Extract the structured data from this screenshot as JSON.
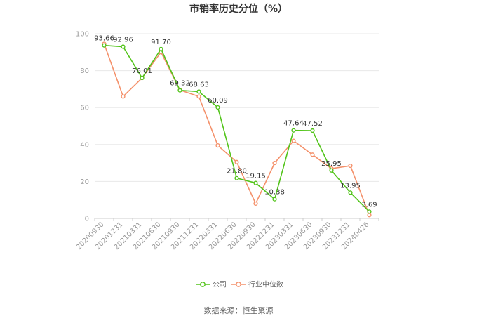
{
  "chart_data": {
    "type": "line",
    "title": "市销率历史分位（%）",
    "categories": [
      "20200930",
      "20201231",
      "20210331",
      "20210630",
      "20210930",
      "20211231",
      "20220331",
      "20220630",
      "20220930",
      "20221231",
      "20230331",
      "20230630",
      "20230930",
      "20231231",
      "20240426"
    ],
    "ylim": [
      0,
      100
    ],
    "yticks": [
      0,
      20,
      40,
      60,
      80,
      100
    ],
    "grid": true,
    "legend_position": "bottom",
    "series": [
      {
        "name": "公司",
        "color": "#52c41a",
        "values": [
          93.66,
          92.96,
          76.01,
          91.7,
          69.32,
          68.63,
          60.09,
          21.8,
          19.15,
          10.38,
          47.64,
          47.52,
          25.95,
          13.95,
          3.69
        ],
        "labels": [
          "93.66",
          "92.96",
          "76.01",
          "91.70",
          "69.32",
          "68.63",
          "60.09",
          "21.80",
          "19.15",
          "10.38",
          "47.64",
          "47.52",
          "25.95",
          "13.95",
          "3.69"
        ]
      },
      {
        "name": "行业中位数",
        "color": "#f4916b",
        "values": [
          94.5,
          66,
          76,
          90,
          69.5,
          66,
          39.5,
          30.5,
          8,
          30,
          42,
          34.5,
          27,
          28.5,
          1.8
        ]
      }
    ],
    "source": "数据来源：恒生聚源"
  }
}
